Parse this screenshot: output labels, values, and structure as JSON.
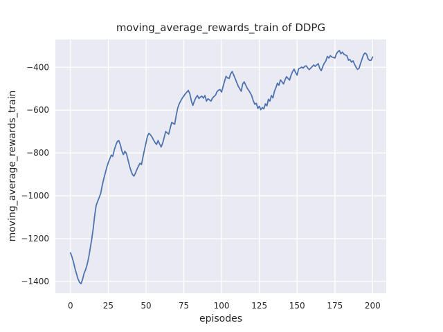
{
  "figure": {
    "background": "#ffffff"
  },
  "chart_data": {
    "type": "line",
    "title": "moving_average_rewards_train of DDPG",
    "xlabel": "episodes",
    "ylabel": "moving_average_rewards_train",
    "x_ticks": [
      0,
      25,
      50,
      75,
      100,
      125,
      150,
      175,
      200
    ],
    "y_ticks": [
      -400,
      -600,
      -800,
      -1000,
      -1200,
      -1400
    ],
    "xlim": [
      -10,
      209
    ],
    "ylim": [
      -1455,
      -270
    ],
    "grid": true,
    "legend": "none",
    "style": {
      "plot_bg": "#eaeaf2",
      "grid_color": "#ffffff",
      "line_color": "#4c72b0",
      "text_color": "#262626",
      "line_width": 1.8
    },
    "series": [
      {
        "name": "moving_average_rewards_train",
        "x_start": 0,
        "x_step": 1,
        "values": [
          -1266,
          -1285,
          -1310,
          -1340,
          -1365,
          -1388,
          -1404,
          -1410,
          -1390,
          -1362,
          -1345,
          -1322,
          -1290,
          -1248,
          -1205,
          -1155,
          -1095,
          -1045,
          -1026,
          -1008,
          -988,
          -952,
          -922,
          -895,
          -868,
          -845,
          -828,
          -810,
          -816,
          -786,
          -764,
          -746,
          -742,
          -762,
          -790,
          -808,
          -792,
          -802,
          -830,
          -858,
          -882,
          -900,
          -908,
          -894,
          -876,
          -862,
          -848,
          -854,
          -818,
          -784,
          -752,
          -720,
          -708,
          -716,
          -726,
          -740,
          -752,
          -760,
          -742,
          -758,
          -772,
          -754,
          -728,
          -700,
          -706,
          -712,
          -684,
          -657,
          -662,
          -666,
          -624,
          -590,
          -570,
          -556,
          -544,
          -534,
          -524,
          -516,
          -508,
          -524,
          -556,
          -578,
          -558,
          -542,
          -532,
          -546,
          -539,
          -535,
          -544,
          -532,
          -558,
          -547,
          -552,
          -558,
          -544,
          -536,
          -530,
          -514,
          -507,
          -504,
          -516,
          -490,
          -464,
          -442,
          -450,
          -452,
          -431,
          -420,
          -436,
          -452,
          -470,
          -488,
          -500,
          -512,
          -478,
          -468,
          -483,
          -498,
          -508,
          -520,
          -533,
          -556,
          -573,
          -568,
          -592,
          -582,
          -598,
          -588,
          -594,
          -571,
          -580,
          -549,
          -558,
          -532,
          -543,
          -512,
          -494,
          -474,
          -484,
          -459,
          -468,
          -478,
          -459,
          -444,
          -452,
          -460,
          -437,
          -420,
          -409,
          -424,
          -437,
          -407,
          -404,
          -399,
          -404,
          -396,
          -393,
          -403,
          -411,
          -404,
          -397,
          -389,
          -396,
          -389,
          -383,
          -406,
          -416,
          -397,
          -381,
          -371,
          -349,
          -357,
          -346,
          -352,
          -354,
          -357,
          -337,
          -327,
          -322,
          -337,
          -329,
          -339,
          -343,
          -347,
          -367,
          -364,
          -376,
          -370,
          -386,
          -399,
          -410,
          -405,
          -382,
          -361,
          -341,
          -333,
          -339,
          -361,
          -368,
          -367,
          -352
        ]
      }
    ]
  }
}
